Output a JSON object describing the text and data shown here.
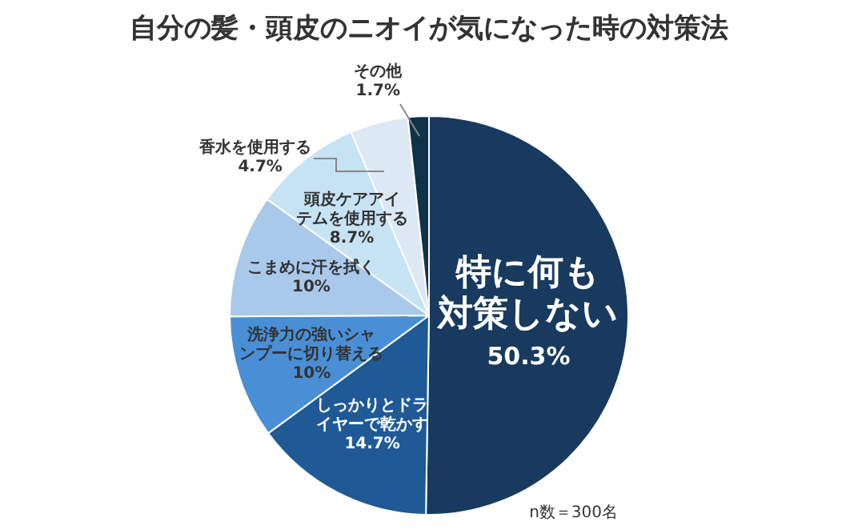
{
  "chart_data": {
    "type": "pie",
    "title": "自分の髪・頭皮のニオイが気になった時の対策法",
    "categories": [
      "特に何も対策しない",
      "しっかりとドライヤーで乾かす",
      "洗浄力の強いシャンプーに切り替える",
      "こまめに汗を拭く",
      "頭皮ケアアイテムを使用する",
      "香水を使用する",
      "その他"
    ],
    "values": [
      50.3,
      14.7,
      10,
      10,
      8.7,
      4.7,
      1.7
    ],
    "value_labels": [
      "50.3%",
      "14.7%",
      "10%",
      "10%",
      "8.7%",
      "4.7%",
      "1.7%"
    ],
    "colors": [
      "#173a5e",
      "#1f5a96",
      "#4a8fd6",
      "#a9c9ea",
      "#c6e3f4",
      "#dde8f5",
      "#0e3349"
    ],
    "legend": false,
    "annotations": [
      "n数＝300名"
    ]
  }
}
